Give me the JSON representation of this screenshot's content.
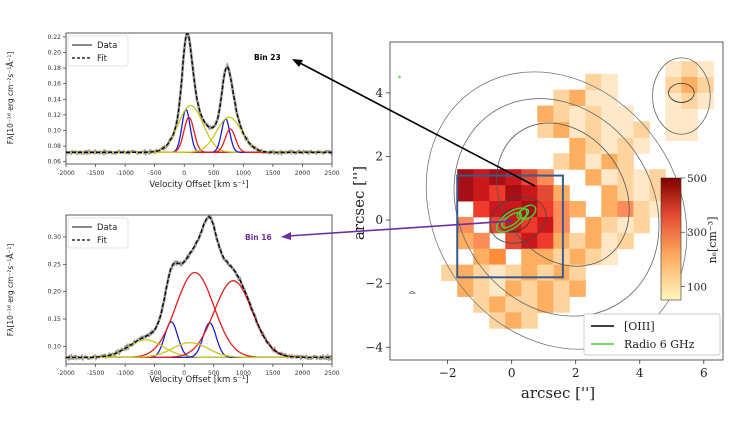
{
  "chart_data": [
    {
      "type": "line",
      "panel": "top-left spectrum",
      "xlabel": "Velocity Offset [km s⁻¹]",
      "ylabel": "Fλ[10⁻¹⁶ erg cm⁻²s⁻¹Å⁻¹]",
      "xlim": [
        -2000,
        2500
      ],
      "ylim": [
        0.057,
        0.225
      ],
      "xticks": [
        "-2000",
        "-1500",
        "-1000",
        "-500",
        "0",
        "500",
        "1000",
        "1500",
        "2000",
        "2500"
      ],
      "yticks": [
        "0.06",
        "0.08",
        "0.10",
        "0.12",
        "0.14",
        "0.16",
        "0.18",
        "0.20",
        "0.22"
      ],
      "legend": [
        "Data",
        "Fit"
      ],
      "bin_label": "Bin 23",
      "baseline": 0.072,
      "components": [
        {
          "color": "blue",
          "center": 30,
          "sigma": 70,
          "amp": 0.055
        },
        {
          "color": "red",
          "center": 80,
          "sigma": 85,
          "amp": 0.045
        },
        {
          "color": "yellowgreen",
          "center": 110,
          "sigma": 210,
          "amp": 0.06
        },
        {
          "color": "blue",
          "center": 700,
          "sigma": 70,
          "amp": 0.043
        },
        {
          "color": "red",
          "center": 780,
          "sigma": 85,
          "amp": 0.03
        },
        {
          "color": "yellowgreen",
          "center": 760,
          "sigma": 210,
          "amp": 0.045
        }
      ]
    },
    {
      "type": "line",
      "panel": "bottom-left spectrum",
      "xlabel": "Velocity Offset [km s⁻¹]",
      "ylabel": "Fλ[10⁻¹⁶ erg cm⁻²s⁻¹Å⁻¹]",
      "xlim": [
        -2000,
        2500
      ],
      "ylim": [
        0.068,
        0.34
      ],
      "xticks": [
        "-2000",
        "-1500",
        "-1000",
        "-500",
        "0",
        "500",
        "1000",
        "1500",
        "2000",
        "2500"
      ],
      "yticks": [
        "0.10",
        "0.15",
        "0.20",
        "0.25",
        "0.30"
      ],
      "legend": [
        "Data",
        "Fit"
      ],
      "bin_label": "Bin 16",
      "baseline": 0.08,
      "components": [
        {
          "color": "blue",
          "center": -220,
          "sigma": 110,
          "amp": 0.065
        },
        {
          "color": "red",
          "center": 180,
          "sigma": 320,
          "amp": 0.155
        },
        {
          "color": "yellowgreen",
          "center": -650,
          "sigma": 300,
          "amp": 0.032
        },
        {
          "color": "blue",
          "center": 430,
          "sigma": 110,
          "amp": 0.063
        },
        {
          "color": "red",
          "center": 830,
          "sigma": 320,
          "amp": 0.14
        },
        {
          "color": "yellowgreen",
          "center": 100,
          "sigma": 300,
          "amp": 0.027
        }
      ]
    },
    {
      "type": "heatmap",
      "panel": "right map",
      "xlabel": "arcsec ['']",
      "ylabel": "arcsec ['']",
      "xlim": [
        -3.8,
        6.6
      ],
      "ylim": [
        -4.4,
        5.6
      ],
      "xticks": [
        "−2",
        "0",
        "2",
        "4",
        "6"
      ],
      "yticks": [
        "−4",
        "−2",
        "0",
        "2",
        "4"
      ],
      "colorbar": {
        "label": "nₑ[cm⁻³]",
        "ticks": [
          "500",
          "300",
          "100"
        ],
        "range": [
          50,
          500
        ]
      },
      "legend": [
        "[OIII]",
        "Radio 6 GHz"
      ],
      "box": {
        "x0": -1.7,
        "x1": 1.6,
        "y0": -1.8,
        "y1": 1.4
      },
      "cells": [
        [
          -1.7,
          1.1,
          "#a50f15"
        ],
        [
          -1.2,
          1.1,
          "#cb181d"
        ],
        [
          -0.7,
          1.1,
          "#a50f15"
        ],
        [
          -0.2,
          1.1,
          "#cb181d"
        ],
        [
          0.3,
          1.1,
          "#e34a33"
        ],
        [
          0.8,
          1.1,
          "#fc8d59"
        ],
        [
          -1.7,
          0.6,
          "#a50f15"
        ],
        [
          -1.2,
          0.6,
          "#cb181d"
        ],
        [
          -0.7,
          0.6,
          "#ef3b2c"
        ],
        [
          -0.2,
          0.6,
          "#a50f15"
        ],
        [
          0.3,
          0.6,
          "#cb181d"
        ],
        [
          0.8,
          0.6,
          "#e34a33"
        ],
        [
          1.3,
          0.6,
          "#fdae61"
        ],
        [
          -1.2,
          0.1,
          "#ef3b2c"
        ],
        [
          -0.7,
          0.1,
          "#cb181d"
        ],
        [
          -0.2,
          0.1,
          "#cb181d"
        ],
        [
          0.3,
          0.1,
          "#a50f15"
        ],
        [
          0.8,
          0.1,
          "#ef3b2c"
        ],
        [
          1.3,
          0.1,
          "#fc8d59"
        ],
        [
          1.8,
          0.1,
          "#fdae61"
        ],
        [
          -0.7,
          -0.4,
          "#e34a33"
        ],
        [
          -0.2,
          -0.4,
          "#cb181d"
        ],
        [
          0.3,
          -0.4,
          "#ef3b2c"
        ],
        [
          0.8,
          -0.4,
          "#cb181d"
        ],
        [
          1.3,
          -0.4,
          "#fc8d59"
        ],
        [
          -0.2,
          -0.9,
          "#e34a33"
        ],
        [
          0.3,
          -0.9,
          "#cb181d"
        ],
        [
          0.8,
          -0.9,
          "#ef3b2c"
        ],
        [
          1.3,
          -0.9,
          "#fdae61"
        ],
        [
          -1.7,
          -0.4,
          "#fc8d59"
        ],
        [
          -1.7,
          -0.9,
          "#fdae61"
        ],
        [
          -1.2,
          -0.9,
          "#fc8d59"
        ],
        [
          -1.2,
          -1.4,
          "#fdae61"
        ],
        [
          -0.7,
          -1.4,
          "#fd8d3c"
        ],
        [
          0.3,
          -1.4,
          "#fdae61"
        ],
        [
          1.3,
          1.6,
          "#fdd49e"
        ],
        [
          1.8,
          1.6,
          "#fdae61"
        ],
        [
          2.3,
          1.6,
          "#fee8c8"
        ],
        [
          2.8,
          1.6,
          "#fdae61"
        ],
        [
          3.3,
          1.6,
          "#fdd49e"
        ],
        [
          1.8,
          2.1,
          "#fdae61"
        ],
        [
          2.3,
          2.1,
          "#fdd49e"
        ],
        [
          2.8,
          2.1,
          "#fee8c8"
        ],
        [
          3.3,
          2.1,
          "#fdd49e"
        ],
        [
          3.8,
          2.1,
          "#fee8c8"
        ],
        [
          0.8,
          2.6,
          "#fdd49e"
        ],
        [
          1.3,
          2.6,
          "#fdae61"
        ],
        [
          1.8,
          2.6,
          "#fee8c8"
        ],
        [
          2.3,
          2.6,
          "#fdd49e"
        ],
        [
          2.8,
          2.6,
          "#fee8c8"
        ],
        [
          3.3,
          2.6,
          "#fee8c8"
        ],
        [
          3.8,
          2.6,
          "#fdd49e"
        ],
        [
          0.8,
          3.1,
          "#fdae61"
        ],
        [
          1.3,
          3.1,
          "#fdd49e"
        ],
        [
          1.8,
          3.1,
          "#fee8c8"
        ],
        [
          2.3,
          3.1,
          "#fdd49e"
        ],
        [
          2.8,
          3.1,
          "#fee8c8"
        ],
        [
          3.3,
          3.1,
          "#fee8c8"
        ],
        [
          1.3,
          3.6,
          "#fdd49e"
        ],
        [
          1.8,
          3.6,
          "#fdae61"
        ],
        [
          2.3,
          3.6,
          "#fee8c8"
        ],
        [
          2.8,
          3.6,
          "#fee8c8"
        ],
        [
          2.3,
          4.1,
          "#fdd49e"
        ],
        [
          2.8,
          4.1,
          "#fee8c8"
        ],
        [
          2.3,
          1.1,
          "#fdae61"
        ],
        [
          2.8,
          1.1,
          "#fee8c8"
        ],
        [
          3.3,
          1.1,
          "#fdd49e"
        ],
        [
          3.8,
          1.1,
          "#fee8c8"
        ],
        [
          4.3,
          1.1,
          "#fdd49e"
        ],
        [
          2.8,
          0.6,
          "#fdae61"
        ],
        [
          3.3,
          0.6,
          "#fdd49e"
        ],
        [
          3.8,
          0.6,
          "#fee8c8"
        ],
        [
          4.3,
          0.6,
          "#fdd49e"
        ],
        [
          4.8,
          0.6,
          "#fee8c8"
        ],
        [
          2.8,
          0.1,
          "#fdae61"
        ],
        [
          3.3,
          0.1,
          "#fc8d59"
        ],
        [
          3.8,
          0.1,
          "#fdd49e"
        ],
        [
          4.3,
          0.1,
          "#fee8c8"
        ],
        [
          2.3,
          -0.4,
          "#fdae61"
        ],
        [
          2.8,
          -0.4,
          "#fdd49e"
        ],
        [
          3.3,
          -0.4,
          "#fee8c8"
        ],
        [
          3.8,
          -0.4,
          "#fdd49e"
        ],
        [
          1.8,
          -0.9,
          "#fdd49e"
        ],
        [
          2.3,
          -0.9,
          "#fdae61"
        ],
        [
          2.8,
          -0.9,
          "#fee8c8"
        ],
        [
          3.3,
          -0.9,
          "#fdd49e"
        ],
        [
          1.8,
          -1.4,
          "#fdae61"
        ],
        [
          2.3,
          -1.4,
          "#fdd49e"
        ],
        [
          2.8,
          -1.4,
          "#fee8c8"
        ],
        [
          0.8,
          -1.4,
          "#fdae61"
        ],
        [
          1.3,
          -1.4,
          "#fdd49e"
        ],
        [
          1.3,
          -1.9,
          "#fdae61"
        ],
        [
          1.8,
          -1.9,
          "#fdd49e"
        ],
        [
          -2.2,
          -1.9,
          "#fdd49e"
        ],
        [
          -1.7,
          -1.9,
          "#fdae61"
        ],
        [
          -1.2,
          -1.9,
          "#fdd49e"
        ],
        [
          -0.7,
          -1.9,
          "#fee8c8"
        ],
        [
          -0.2,
          -1.9,
          "#fdd49e"
        ],
        [
          0.3,
          -1.9,
          "#fdae61"
        ],
        [
          0.8,
          -1.9,
          "#fdd49e"
        ],
        [
          -1.7,
          -2.4,
          "#fdae61"
        ],
        [
          -1.2,
          -2.4,
          "#fdd49e"
        ],
        [
          -0.7,
          -2.4,
          "#fee8c8"
        ],
        [
          -0.2,
          -2.4,
          "#fdae61"
        ],
        [
          0.3,
          -2.4,
          "#fdd49e"
        ],
        [
          0.8,
          -2.4,
          "#fdae61"
        ],
        [
          1.3,
          -2.4,
          "#fdd49e"
        ],
        [
          1.8,
          -2.4,
          "#fdae61"
        ],
        [
          -1.2,
          -2.9,
          "#fdd49e"
        ],
        [
          -0.7,
          -2.9,
          "#fdae61"
        ],
        [
          -0.2,
          -2.9,
          "#fdd49e"
        ],
        [
          0.3,
          -2.9,
          "#fdd49e"
        ],
        [
          0.8,
          -2.9,
          "#fdae61"
        ],
        [
          1.3,
          -2.9,
          "#fdd49e"
        ],
        [
          -0.7,
          -3.4,
          "#fdd49e"
        ],
        [
          -0.2,
          -3.4,
          "#fdae61"
        ],
        [
          0.3,
          -3.4,
          "#fdd49e"
        ],
        [
          4.8,
          4.5,
          "#fee8c8"
        ],
        [
          5.3,
          4.5,
          "#fdd49e"
        ],
        [
          5.8,
          4.5,
          "#fee8c8"
        ],
        [
          4.8,
          4.0,
          "#fdd49e"
        ],
        [
          5.3,
          4.0,
          "#fdae61"
        ],
        [
          5.8,
          4.0,
          "#fdd49e"
        ],
        [
          4.8,
          3.5,
          "#fee8c8"
        ],
        [
          5.3,
          3.5,
          "#fdd49e"
        ],
        [
          5.8,
          3.5,
          "#fee8c8"
        ],
        [
          4.8,
          3.0,
          "#fee8c8"
        ],
        [
          5.3,
          3.0,
          "#fee8c8"
        ],
        [
          4.8,
          2.5,
          "#fee8c8"
        ],
        [
          5.3,
          2.5,
          "#fee8c8"
        ]
      ]
    }
  ]
}
